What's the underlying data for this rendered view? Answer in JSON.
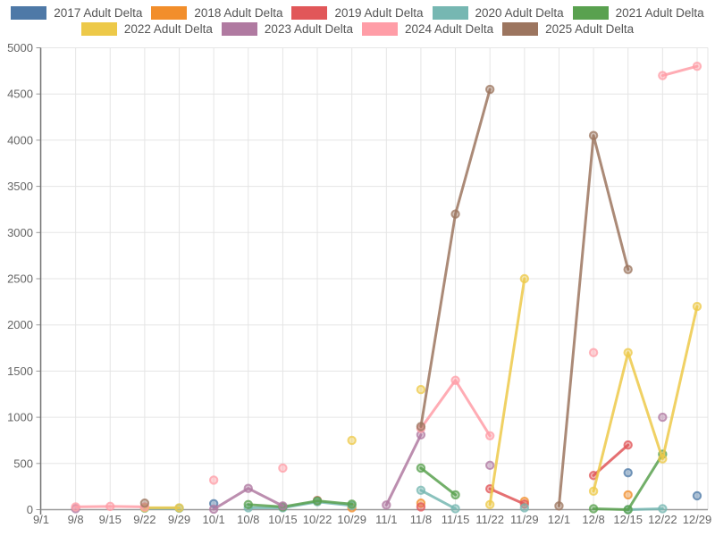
{
  "chart_data": {
    "type": "line",
    "title": "",
    "xlabel": "",
    "ylabel": "",
    "ylim": [
      0,
      5000
    ],
    "ytick_step": 500,
    "grid": true,
    "legend_position": "top",
    "legend_rows": [
      5,
      4
    ],
    "categories": [
      "9/1",
      "9/8",
      "9/15",
      "9/22",
      "9/29",
      "10/1",
      "10/8",
      "10/15",
      "10/22",
      "10/29",
      "11/1",
      "11/8",
      "11/15",
      "11/22",
      "11/29",
      "12/1",
      "12/8",
      "12/15",
      "12/22",
      "12/29"
    ],
    "series": [
      {
        "name": "2017 Adult Delta",
        "color": "#4e79a7",
        "values": [
          null,
          null,
          null,
          null,
          null,
          65,
          null,
          null,
          null,
          null,
          null,
          null,
          null,
          null,
          null,
          null,
          null,
          400,
          null,
          150
        ]
      },
      {
        "name": "2018 Adult Delta",
        "color": "#f28e2b",
        "values": [
          null,
          null,
          null,
          null,
          null,
          null,
          null,
          null,
          null,
          20,
          null,
          70,
          null,
          null,
          90,
          null,
          null,
          160,
          null,
          null
        ]
      },
      {
        "name": "2019 Adult Delta",
        "color": "#e15759",
        "values": [
          null,
          null,
          null,
          null,
          null,
          null,
          null,
          null,
          100,
          null,
          null,
          30,
          null,
          225,
          60,
          null,
          370,
          700,
          null,
          null
        ]
      },
      {
        "name": "2020 Adult Delta",
        "color": "#76b7b2",
        "values": [
          null,
          null,
          null,
          15,
          15,
          null,
          20,
          20,
          85,
          45,
          null,
          210,
          10,
          null,
          20,
          null,
          null,
          0,
          10,
          null
        ]
      },
      {
        "name": "2021 Adult Delta",
        "color": "#59a14f",
        "values": [
          null,
          null,
          null,
          null,
          null,
          null,
          55,
          30,
          95,
          60,
          null,
          450,
          160,
          null,
          null,
          null,
          10,
          0,
          600,
          null
        ]
      },
      {
        "name": "2022 Adult Delta",
        "color": "#edc949",
        "values": [
          null,
          null,
          null,
          20,
          20,
          null,
          null,
          null,
          null,
          750,
          null,
          1300,
          null,
          55,
          2500,
          null,
          200,
          1700,
          550,
          2200
        ]
      },
      {
        "name": "2023 Adult Delta",
        "color": "#b07aa1",
        "values": [
          null,
          10,
          null,
          null,
          null,
          5,
          230,
          40,
          null,
          null,
          50,
          810,
          null,
          480,
          null,
          null,
          null,
          null,
          1000,
          null
        ]
      },
      {
        "name": "2024 Adult Delta",
        "color": "#ff9da7",
        "values": [
          null,
          30,
          35,
          30,
          null,
          320,
          null,
          450,
          null,
          null,
          null,
          880,
          1400,
          800,
          null,
          null,
          1700,
          null,
          4700,
          4800
        ]
      },
      {
        "name": "2025 Adult Delta",
        "color": "#9c755f",
        "values": [
          null,
          null,
          null,
          70,
          null,
          null,
          null,
          null,
          null,
          null,
          null,
          900,
          3200,
          4550,
          null,
          40,
          4050,
          2600,
          null,
          null
        ]
      }
    ],
    "style": {
      "grid_color": "#e5e5e5",
      "axis_line_color": "#999999",
      "y_axis_line_color": "#757575",
      "tick_label_color": "#666666",
      "line_width": 3,
      "point_radius": 4.2
    }
  }
}
